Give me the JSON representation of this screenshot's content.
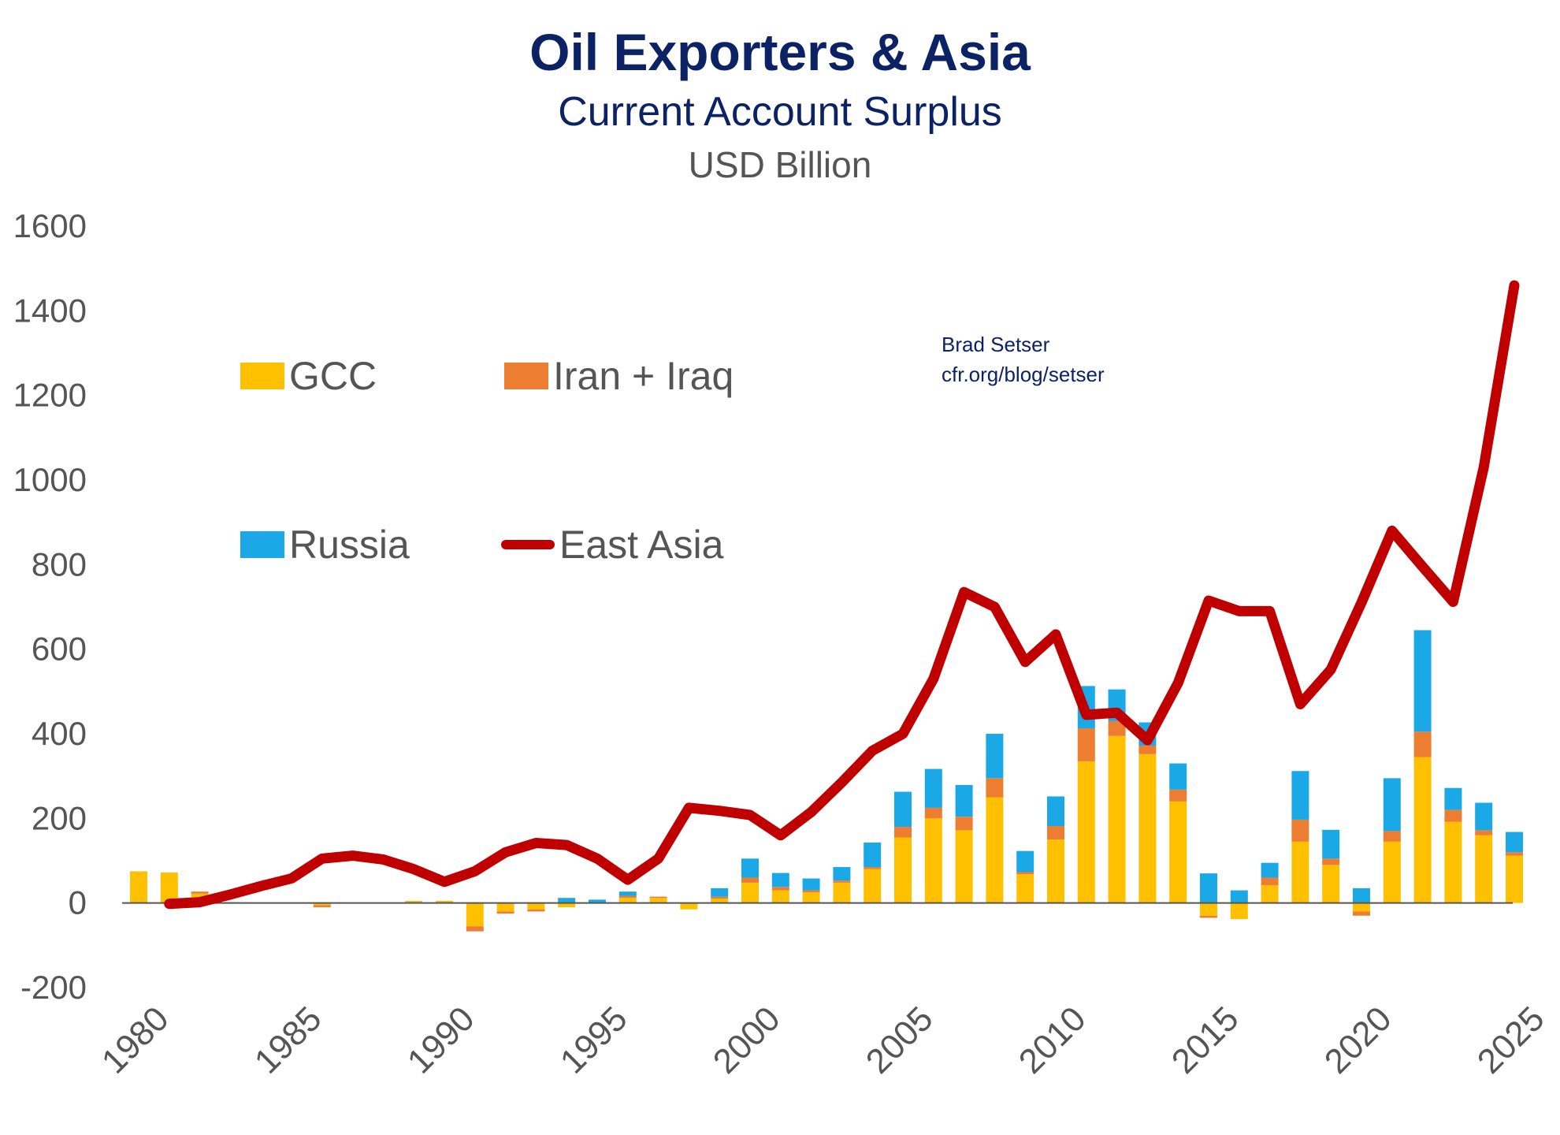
{
  "title": "Oil Exporters & Asia",
  "subtitle": "Current Account Surplus",
  "unit_label": "USD Billion",
  "credit": {
    "author": "Brad Setser",
    "site": "cfr.org/blog/setser"
  },
  "legend": {
    "gcc": "GCC",
    "iran_iraq": "Iran + Iraq",
    "russia": "Russia",
    "east_asia": "East Asia"
  },
  "colors": {
    "gcc": "#ffc000",
    "iran_iraq": "#ed7d31",
    "russia": "#1aa9e6",
    "east_asia": "#c00000",
    "title": "#0b2265",
    "axis_text": "#555555"
  },
  "chart_data": {
    "type": "bar",
    "stacked": true,
    "ylim": [
      -200,
      1600
    ],
    "y_ticks": [
      "1600",
      "1400",
      "1200",
      "1000",
      "800",
      "600",
      "400",
      "200",
      "0",
      "-200"
    ],
    "x_ticks": [
      "1980",
      "1985",
      "1990",
      "1995",
      "2000",
      "2005",
      "2010",
      "2015",
      "2020",
      "2025"
    ],
    "grid": false,
    "legend_position": "top-left",
    "categories": [
      1980,
      1981,
      1982,
      1983,
      1984,
      1985,
      1986,
      1987,
      1988,
      1989,
      1990,
      1991,
      1992,
      1993,
      1994,
      1995,
      1996,
      1997,
      1998,
      1999,
      2000,
      2001,
      2002,
      2003,
      2004,
      2005,
      2006,
      2007,
      2008,
      2009,
      2010,
      2011,
      2012,
      2013,
      2014,
      2015,
      2016,
      2017,
      2018,
      2019,
      2020,
      2021,
      2022,
      2023,
      2024,
      2025
    ],
    "series": [
      {
        "name": "GCC",
        "kind": "bar",
        "values": [
          75,
          72,
          22,
          2,
          0,
          0,
          -5,
          0,
          0,
          5,
          5,
          -55,
          -20,
          -15,
          -10,
          0,
          12,
          12,
          -15,
          10,
          48,
          30,
          25,
          48,
          80,
          155,
          200,
          172,
          250,
          68,
          150,
          335,
          395,
          352,
          240,
          -30,
          -38,
          42,
          145,
          90,
          -20,
          145,
          345,
          192,
          160,
          112
        ]
      },
      {
        "name": "Iran + Iraq",
        "kind": "bar",
        "values": [
          0,
          0,
          5,
          0,
          0,
          0,
          -5,
          0,
          0,
          0,
          0,
          -12,
          -5,
          -5,
          0,
          0,
          5,
          3,
          0,
          5,
          12,
          8,
          5,
          5,
          5,
          25,
          25,
          32,
          45,
          5,
          32,
          78,
          35,
          20,
          28,
          -5,
          0,
          18,
          52,
          15,
          -10,
          25,
          60,
          28,
          12,
          8
        ]
      },
      {
        "name": "Russia",
        "kind": "bar",
        "values": [
          0,
          0,
          0,
          0,
          0,
          0,
          0,
          0,
          0,
          0,
          0,
          0,
          0,
          0,
          12,
          8,
          10,
          0,
          0,
          20,
          45,
          33,
          28,
          32,
          58,
          83,
          92,
          75,
          105,
          50,
          70,
          100,
          75,
          55,
          62,
          70,
          30,
          35,
          115,
          68,
          35,
          125,
          240,
          52,
          65,
          48
        ]
      },
      {
        "name": "East Asia",
        "kind": "line",
        "values": [
          null,
          -2,
          2,
          20,
          40,
          58,
          105,
          112,
          103,
          80,
          50,
          75,
          120,
          142,
          137,
          105,
          55,
          105,
          225,
          218,
          208,
          160,
          215,
          285,
          360,
          400,
          530,
          735,
          700,
          570,
          635,
          445,
          450,
          385,
          520,
          715,
          690,
          690,
          470,
          552,
          710,
          880,
          795,
          712,
          1030,
          1460
        ]
      }
    ]
  }
}
